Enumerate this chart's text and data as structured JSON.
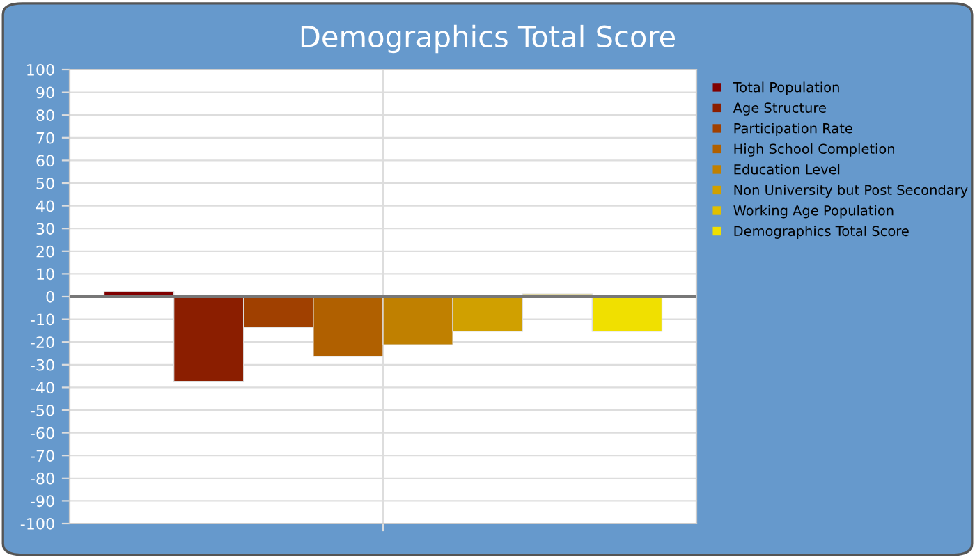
{
  "chart_data": {
    "type": "bar",
    "title": "Demographics Total Score",
    "categories": [
      null
    ],
    "series": [
      {
        "name": "Total Population",
        "color": "#800000",
        "values": [
          2.2
        ]
      },
      {
        "name": "Age Structure",
        "color": "#8b1e00",
        "values": [
          -37.3
        ]
      },
      {
        "name": "Participation Rate",
        "color": "#a04000",
        "values": [
          -13.5
        ]
      },
      {
        "name": "High School Completion",
        "color": "#b06000",
        "values": [
          -26.3
        ]
      },
      {
        "name": "Education Level",
        "color": "#c08000",
        "values": [
          -21.2
        ]
      },
      {
        "name": "Non University but Post Secondary",
        "color": "#d0a000",
        "values": [
          -15.3
        ]
      },
      {
        "name": "Working Age Population",
        "color": "#e0c000",
        "values": [
          1.2
        ]
      },
      {
        "name": "Demographics Total Score",
        "color": "#f0e000",
        "values": [
          -15.3
        ]
      }
    ],
    "ylim": [
      -100,
      100
    ],
    "yticks": [
      -100,
      -90,
      -80,
      -70,
      -60,
      -50,
      -40,
      -30,
      -20,
      -10,
      0,
      10,
      20,
      30,
      40,
      50,
      60,
      70,
      80,
      90,
      100
    ],
    "grid": true,
    "legend": "right",
    "tick_labels": "y"
  }
}
